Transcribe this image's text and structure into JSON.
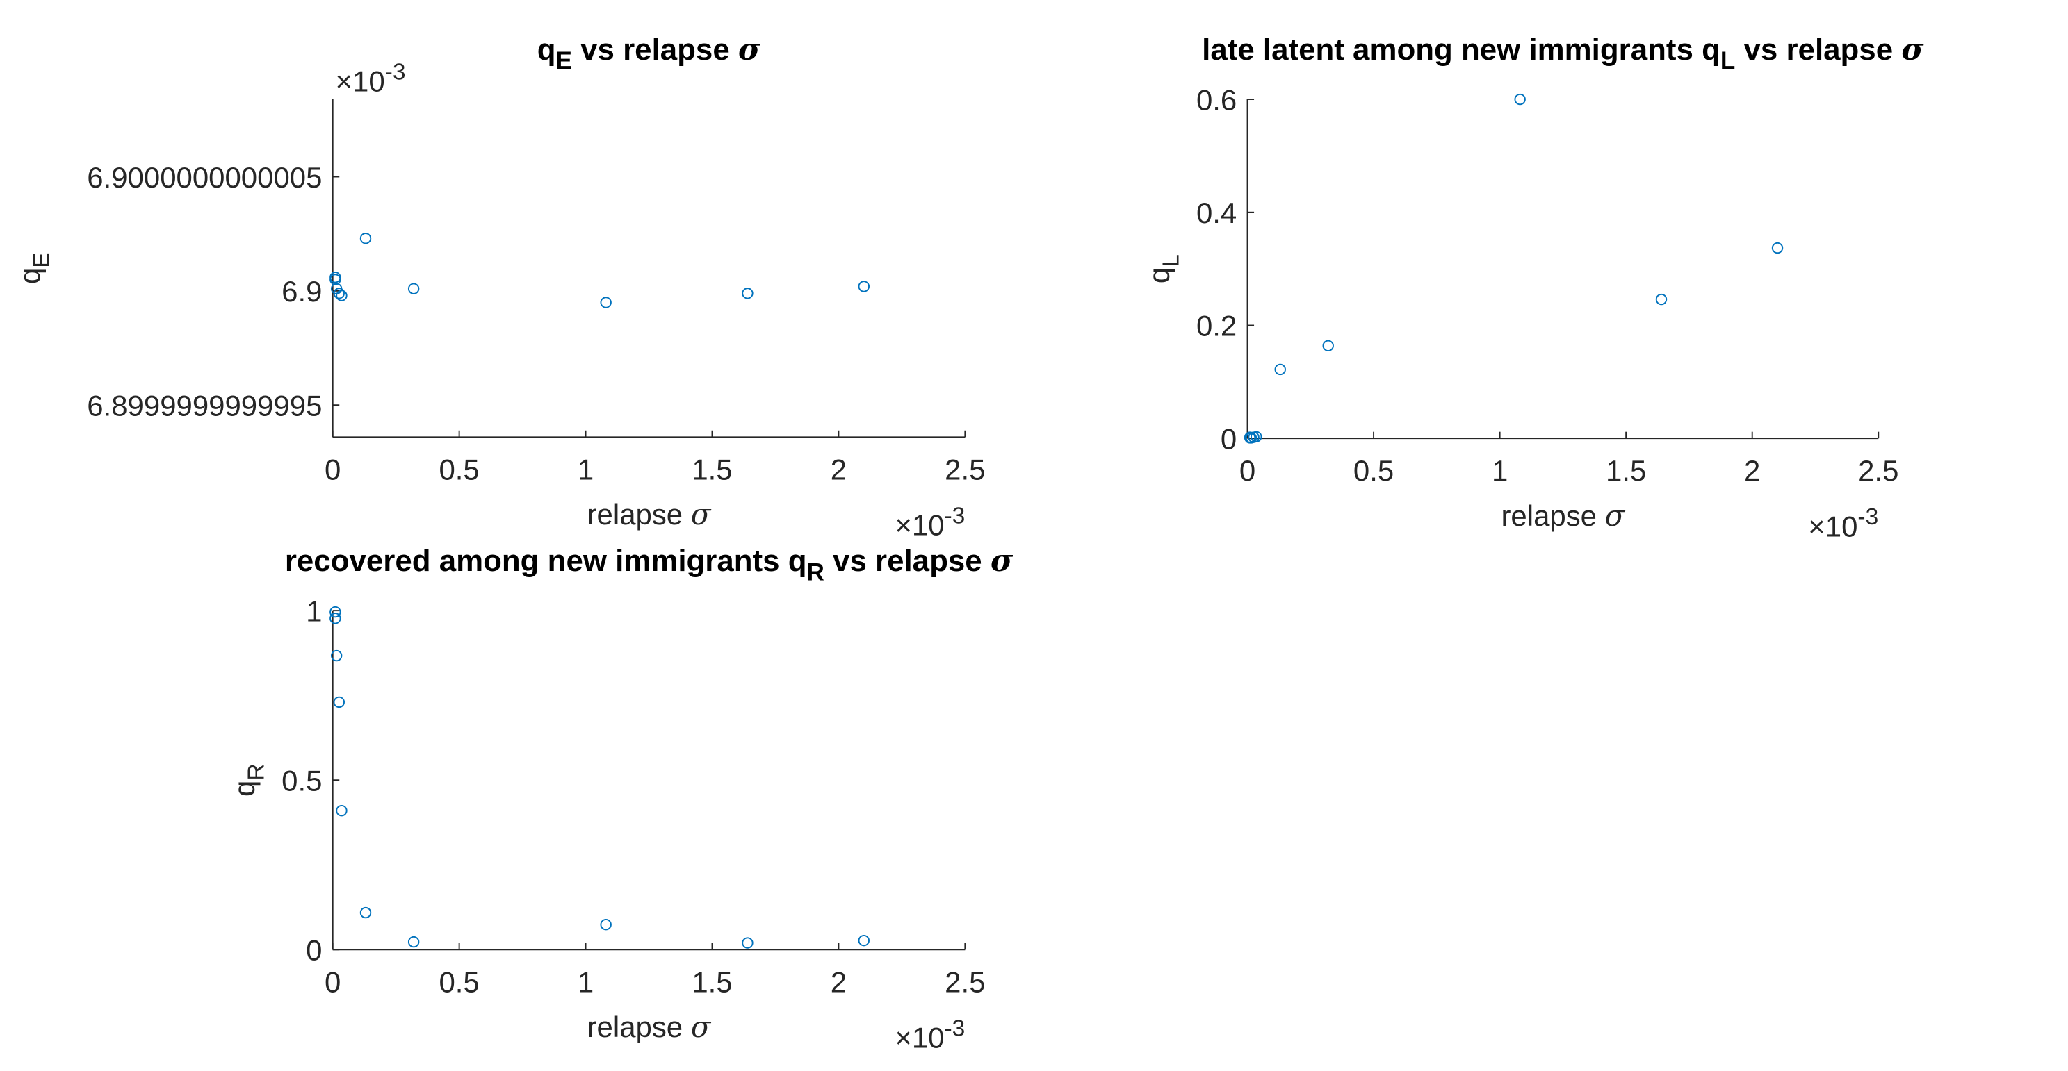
{
  "chart_data": [
    {
      "type": "scatter",
      "title": [
        {
          "text": "q"
        },
        {
          "text": "E",
          "sub": true
        },
        {
          "text": " vs relapse "
        },
        {
          "text": "σ",
          "italic": true
        }
      ],
      "xlabel": [
        {
          "text": "relapse "
        },
        {
          "text": "σ",
          "italic": true
        }
      ],
      "ylabel": [
        {
          "text": "q"
        },
        {
          "text": "E",
          "sub": true
        }
      ],
      "x_multiplier": [
        {
          "text": "×10"
        },
        {
          "text": "-3",
          "sup": true
        }
      ],
      "y_multiplier": [
        {
          "text": "×10"
        },
        {
          "text": "-3",
          "sup": true
        }
      ],
      "x": [
        0.01,
        0.01,
        0.015,
        0.025,
        0.035,
        0.13,
        0.32,
        1.08,
        1.64,
        2.1
      ],
      "values": [
        6.90000000000006,
        6.90000000000005,
        6.90000000000001,
        6.89999999999999,
        6.89999999999998,
        6.90000000000023,
        6.90000000000001,
        6.89999999999995,
        6.89999999999999,
        6.90000000000002
      ],
      "color": "#0072bd",
      "xlim": [
        0,
        2.5
      ],
      "xticks": [
        0,
        0.5,
        1,
        1.5,
        2,
        2.5
      ],
      "ylim": [
        6.89999999999936,
        6.90000000000084
      ],
      "yticks": [
        6.8999999999995,
        6.9,
        6.9000000000005
      ]
    },
    {
      "type": "scatter",
      "title": [
        {
          "text": "late latent among new immigrants q"
        },
        {
          "text": "L",
          "sub": true
        },
        {
          "text": " vs relapse "
        },
        {
          "text": "σ",
          "italic": true
        }
      ],
      "xlabel": [
        {
          "text": "relapse "
        },
        {
          "text": "σ",
          "italic": true
        }
      ],
      "ylabel": [
        {
          "text": "q"
        },
        {
          "text": "L",
          "sub": true
        }
      ],
      "x_multiplier": [
        {
          "text": "×10"
        },
        {
          "text": "-3",
          "sup": true
        }
      ],
      "x": [
        0.01,
        0.01,
        0.015,
        0.025,
        0.035,
        0.13,
        0.32,
        1.08,
        1.64,
        2.1
      ],
      "values": [
        0.001,
        0.002,
        0.001,
        0.002,
        0.003,
        0.122,
        0.164,
        0.6,
        0.246,
        0.337
      ],
      "color": "#0072bd",
      "xlim": [
        0,
        2.5
      ],
      "xticks": [
        0,
        0.5,
        1,
        1.5,
        2,
        2.5
      ],
      "ylim": [
        0,
        0.6
      ],
      "yticks": [
        0,
        0.2,
        0.4,
        0.6
      ]
    },
    {
      "type": "scatter",
      "title": [
        {
          "text": "recovered among new immigrants q"
        },
        {
          "text": "R",
          "sub": true
        },
        {
          "text": " vs relapse "
        },
        {
          "text": "σ",
          "italic": true
        }
      ],
      "xlabel": [
        {
          "text": "relapse "
        },
        {
          "text": "σ",
          "italic": true
        }
      ],
      "ylabel": [
        {
          "text": "q"
        },
        {
          "text": "R",
          "sub": true
        }
      ],
      "x_multiplier": [
        {
          "text": "×10"
        },
        {
          "text": "-3",
          "sup": true
        }
      ],
      "x": [
        0.01,
        0.01,
        0.015,
        0.025,
        0.035,
        0.13,
        0.32,
        1.08,
        1.64,
        2.1
      ],
      "values": [
        0.996,
        0.977,
        0.867,
        0.73,
        0.41,
        0.109,
        0.023,
        0.074,
        0.02,
        0.027
      ],
      "color": "#0072bd",
      "xlim": [
        0,
        2.5
      ],
      "xticks": [
        0,
        0.5,
        1,
        1.5,
        2,
        2.5
      ],
      "ylim": [
        0,
        1
      ],
      "yticks": [
        0,
        0.5,
        1
      ]
    }
  ]
}
